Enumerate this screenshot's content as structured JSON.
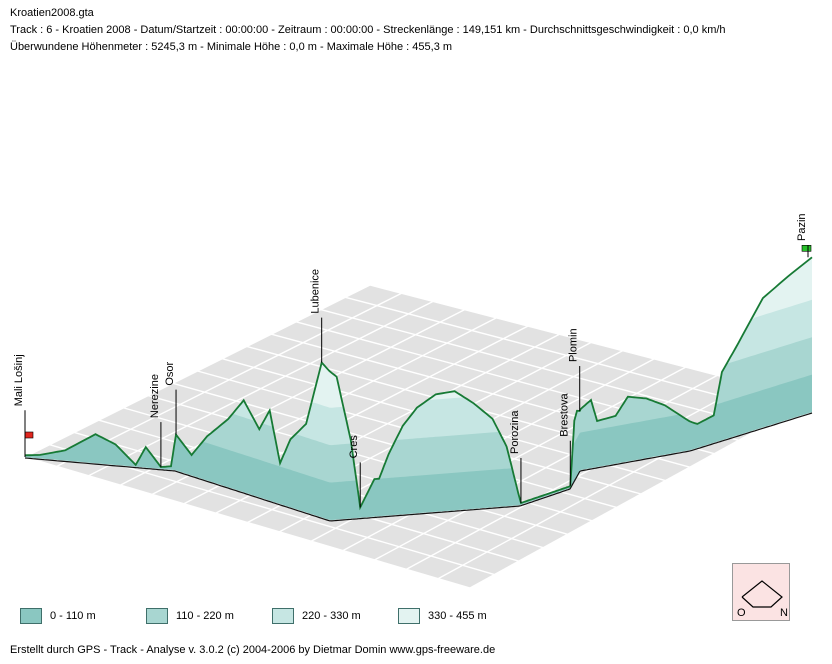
{
  "header": {
    "file": "Kroatien2008.gta",
    "line2": "Track : 6 - Kroatien 2008 - Datum/Startzeit : 00:00:00 - Zeitraum : 00:00:00 - Streckenlänge : 149,151 km - Durchschnittsgeschwindigkeit : 0,0 km/h",
    "line3": "Überwundene Höhenmeter : 5245,3 m  -  Minimale Höhe : 0,0 m  -  Maximale Höhe : 455,3 m"
  },
  "chart_data": {
    "type": "area",
    "projection": "3d-oblique",
    "grid": true,
    "legend_position": "bottom",
    "ylim": [
      0,
      455.3
    ],
    "x": [
      0,
      3,
      8,
      14,
      18,
      22,
      24,
      27,
      29,
      30,
      33,
      36,
      40,
      43,
      46,
      48,
      50,
      52,
      55,
      58,
      61,
      64,
      66,
      69,
      70,
      72,
      75,
      78,
      82,
      86,
      90,
      94,
      97,
      100,
      102,
      104,
      106,
      108,
      109,
      112,
      114,
      116,
      118,
      119,
      122,
      124,
      127,
      130,
      133,
      135,
      137,
      138,
      140,
      143,
      146,
      149
    ],
    "y": [
      5,
      10,
      30,
      85,
      60,
      5,
      60,
      5,
      10,
      105,
      60,
      130,
      200,
      270,
      200,
      265,
      120,
      200,
      260,
      455,
      420,
      230,
      30,
      110,
      110,
      180,
      260,
      310,
      345,
      350,
      310,
      260,
      175,
      5,
      5,
      5,
      5,
      5,
      5,
      175,
      190,
      175,
      200,
      135,
      140,
      190,
      175,
      145,
      100,
      70,
      80,
      200,
      270,
      380,
      420,
      455
    ],
    "places": [
      {
        "name": "Mali Lošinj",
        "x": 0
      },
      {
        "name": "Nerezine",
        "x": 27
      },
      {
        "name": "Osor",
        "x": 30
      },
      {
        "name": "Lubenice",
        "x": 58
      },
      {
        "name": "Cres",
        "x": 66
      },
      {
        "name": "Porozina",
        "x": 100
      },
      {
        "name": "Brestova",
        "x": 109
      },
      {
        "name": "Plomin",
        "x": 116
      },
      {
        "name": "Pazin",
        "x": 149
      }
    ],
    "legend": [
      {
        "label": "0 - 110 m",
        "color": "#8ac7c1"
      },
      {
        "label": "110 - 220 m",
        "color": "#a8d6d1"
      },
      {
        "label": "220 - 330 m",
        "color": "#c6e6e3"
      },
      {
        "label": "330 - 455 m",
        "color": "#e3f3f1"
      }
    ],
    "colors": {
      "line": "#177a35",
      "grid": "#b8b8b8",
      "floor": "#e2e2e2",
      "start": "#e0261e",
      "end": "#27c02a"
    }
  },
  "compass": {
    "left": "O",
    "right": "N"
  },
  "footer": "Erstellt durch  GPS - Track - Analyse   v. 3.0.2   (c) 2004-2006 by Dietmar Domin  www.gps-freeware.de"
}
